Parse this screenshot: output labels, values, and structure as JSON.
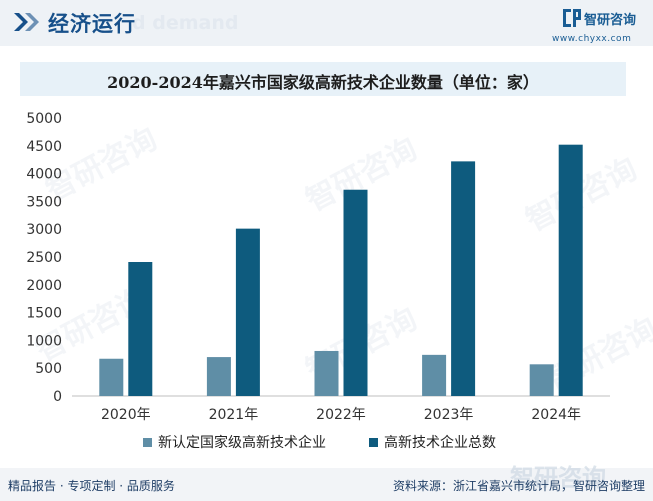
{
  "header": {
    "section_title": "经济运行",
    "ghost_text": "d demand"
  },
  "logo": {
    "name": "智研咨询",
    "url": "www.chyxx.com"
  },
  "watermark_text": "智研咨询",
  "chart_data": {
    "type": "bar",
    "title": "2020-2024年嘉兴市国家级高新技术企业数量（单位：家）",
    "categories": [
      "2020年",
      "2021年",
      "2022年",
      "2023年",
      "2024年"
    ],
    "series": [
      {
        "name": "新认定国家级高新技术企业",
        "values": [
          670,
          700,
          810,
          740,
          570
        ],
        "color": "#5f8ea6"
      },
      {
        "name": "高新技术企业总数",
        "values": [
          2410,
          3010,
          3710,
          4220,
          4520
        ],
        "color": "#0e5b7e"
      }
    ],
    "ylim": [
      0,
      5000
    ],
    "yticks": [
      0,
      500,
      1000,
      1500,
      2000,
      2500,
      3000,
      3500,
      4000,
      4500,
      5000
    ],
    "grid": false,
    "legend_position": "bottom"
  },
  "footer": {
    "left": "精品报告 · 专项定制 · 品质服务",
    "right": "资料来源：浙江省嘉兴市统计局，智研咨询整理",
    "ghost": "智研咨询"
  }
}
